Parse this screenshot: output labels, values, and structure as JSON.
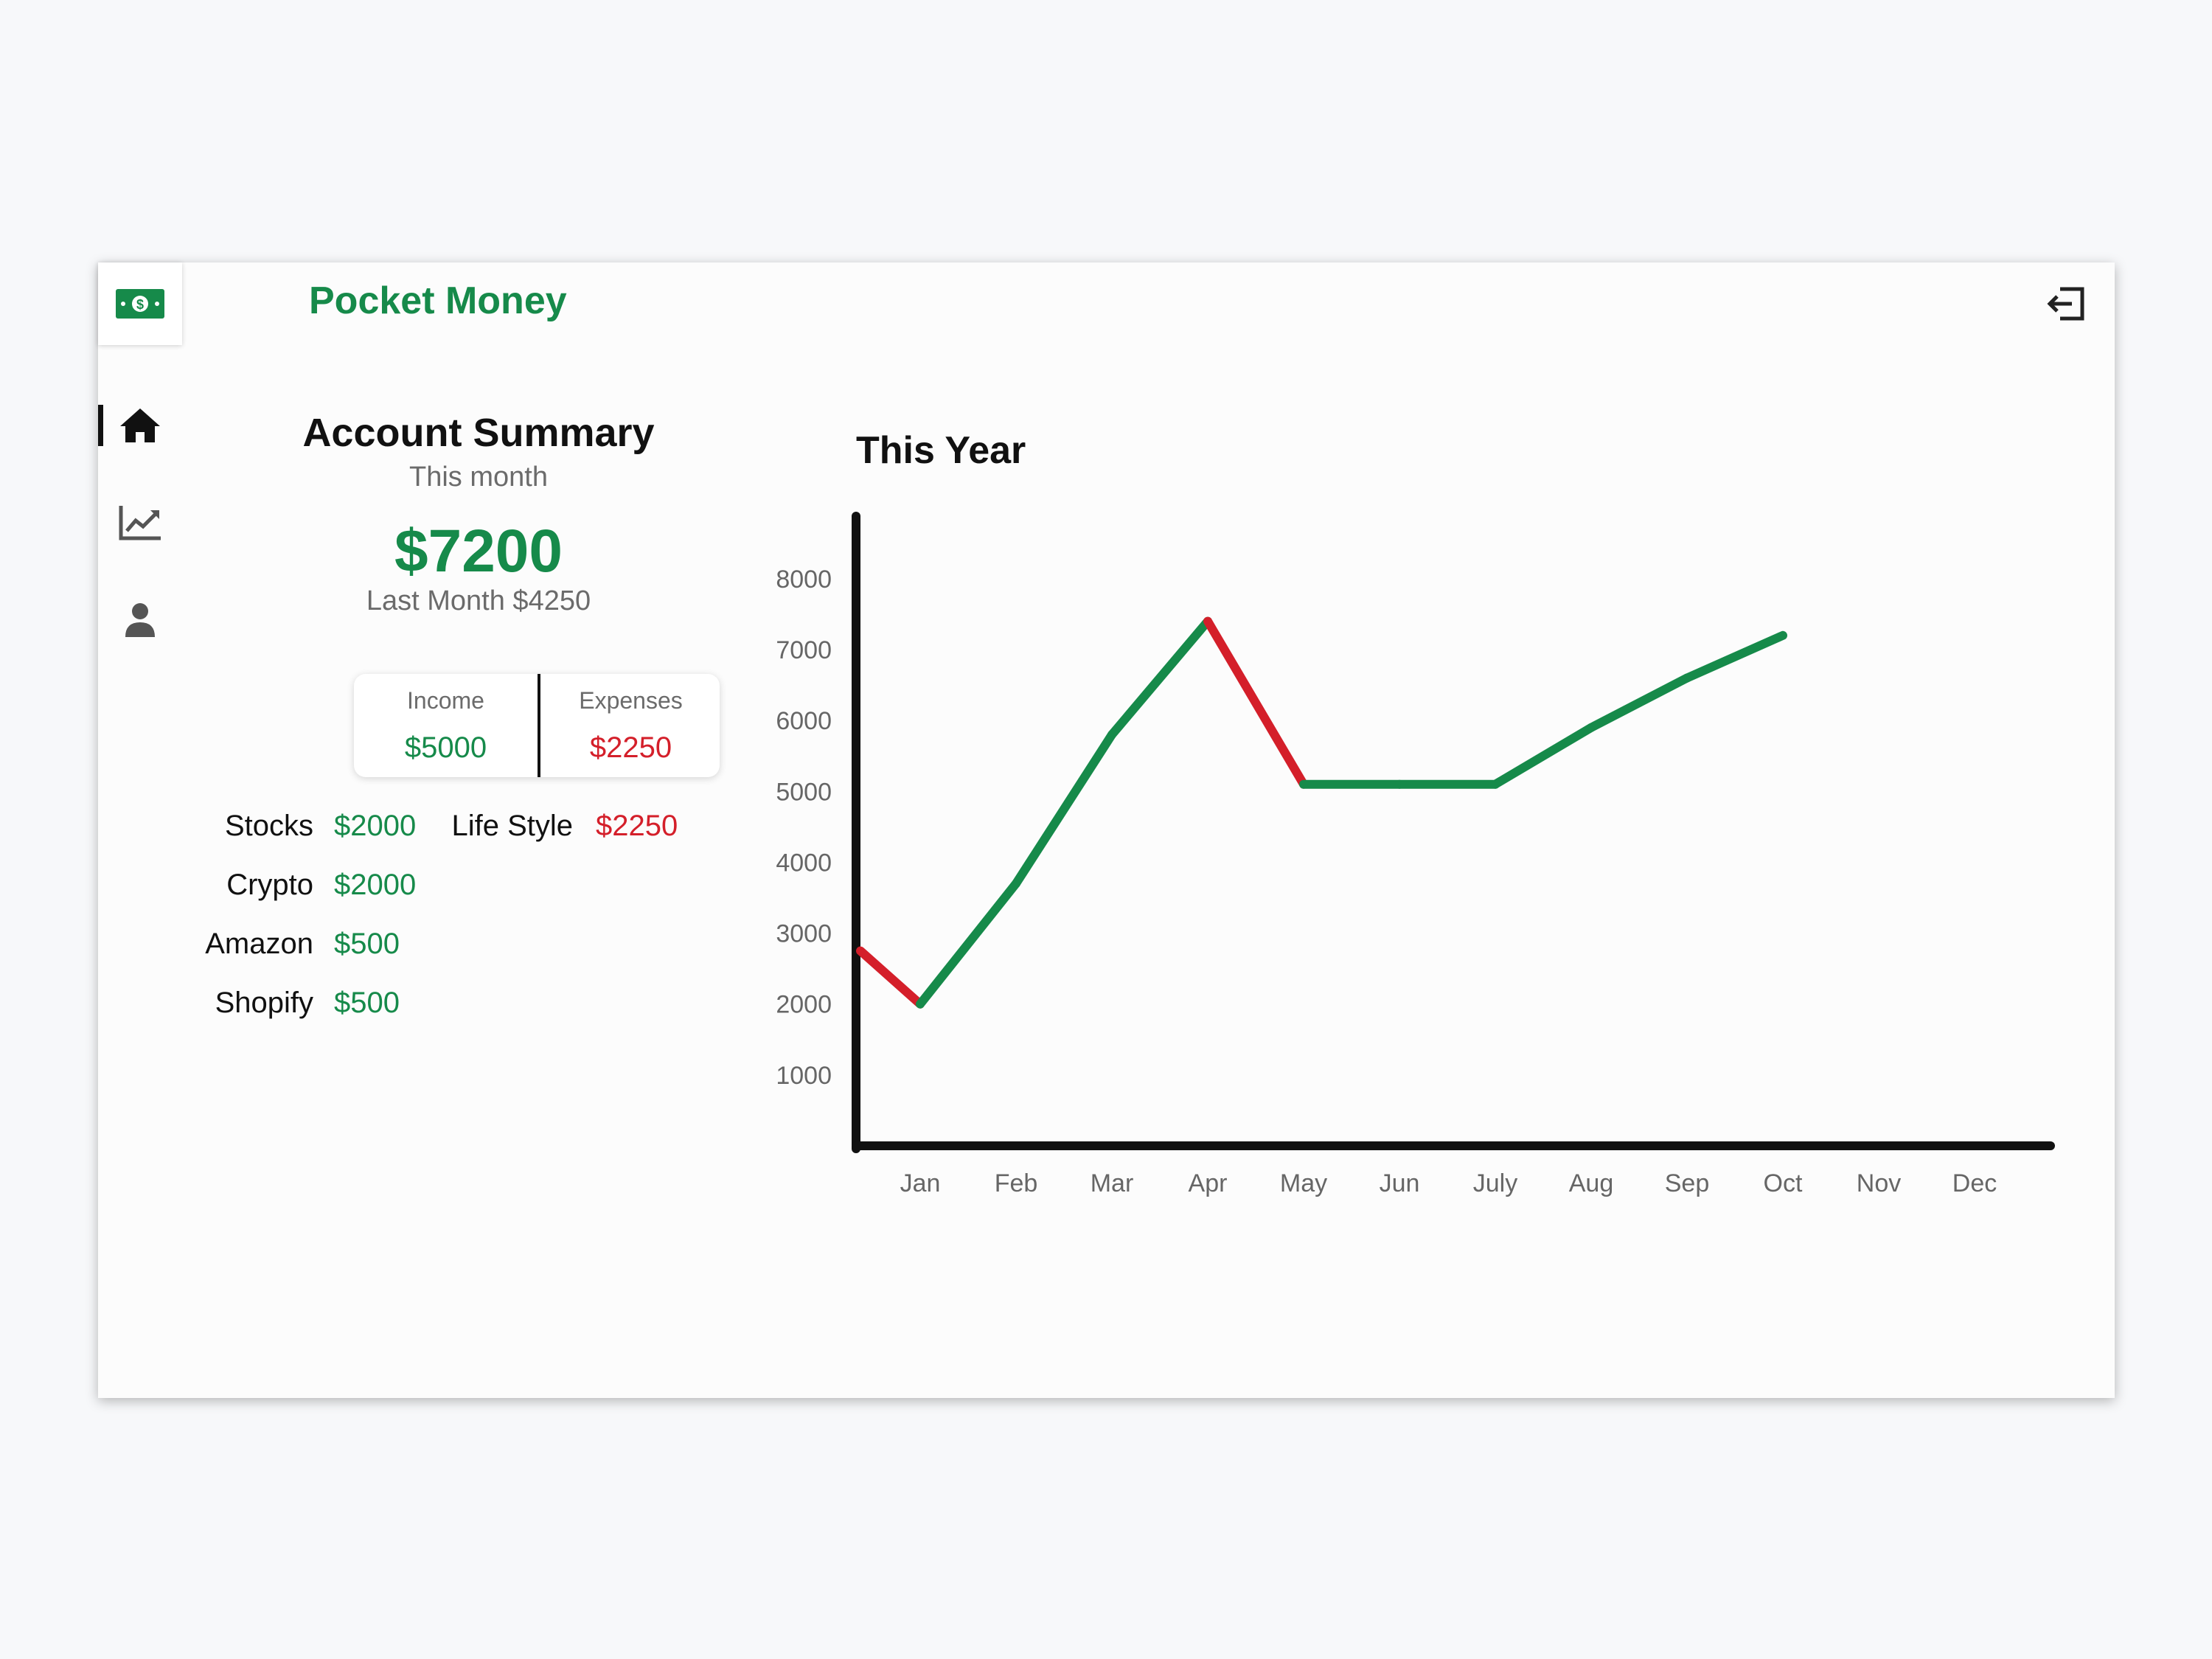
{
  "app": {
    "title": "Pocket Money"
  },
  "icons": {
    "logo": "money-bill-icon",
    "logout": "logout-icon",
    "home": "home-icon",
    "analytics": "trending-chart-icon",
    "profile": "user-icon"
  },
  "colors": {
    "income": "#168a4a",
    "expense": "#d41f2a",
    "text": "#111111",
    "muted": "#6b6b6b"
  },
  "nav": {
    "active": "home"
  },
  "summary": {
    "title": "Account Summary",
    "period": "This month",
    "total": "$7200",
    "last_month": "Last Month $4250",
    "income_label": "Income",
    "income_value": "$5000",
    "expenses_label": "Expenses",
    "expenses_value": "$2250",
    "income_items": [
      {
        "label": "Stocks",
        "value": "$2000"
      },
      {
        "label": "Crypto",
        "value": "$2000"
      },
      {
        "label": "Amazon",
        "value": "$500"
      },
      {
        "label": "Shopify",
        "value": "$500"
      }
    ],
    "expense_items": [
      {
        "label": "Life Style",
        "value": "$2250"
      }
    ]
  },
  "chart": {
    "title": "This Year"
  },
  "chart_data": {
    "type": "line",
    "title": "This Year",
    "x": [
      "",
      "Jan",
      "Feb",
      "Mar",
      "Apr",
      "May",
      "Jun",
      "July",
      "Aug",
      "Sep",
      "Oct"
    ],
    "categories": [
      "Jan",
      "Feb",
      "Mar",
      "Apr",
      "May",
      "Jun",
      "July",
      "Aug",
      "Sep",
      "Oct",
      "Nov",
      "Dec"
    ],
    "values": [
      2750,
      2000,
      3700,
      5800,
      7400,
      5100,
      5100,
      5100,
      5900,
      6600,
      7200
    ],
    "segment_colors": [
      "#d41f2a",
      "#168a4a",
      "#168a4a",
      "#168a4a",
      "#d41f2a",
      "#168a4a",
      "#168a4a",
      "#168a4a",
      "#168a4a",
      "#168a4a"
    ],
    "yticks": [
      1000,
      2000,
      3000,
      4000,
      5000,
      6000,
      7000,
      8000
    ],
    "ylim": [
      0,
      8800
    ],
    "xlabel": "",
    "ylabel": "",
    "grid": false
  }
}
